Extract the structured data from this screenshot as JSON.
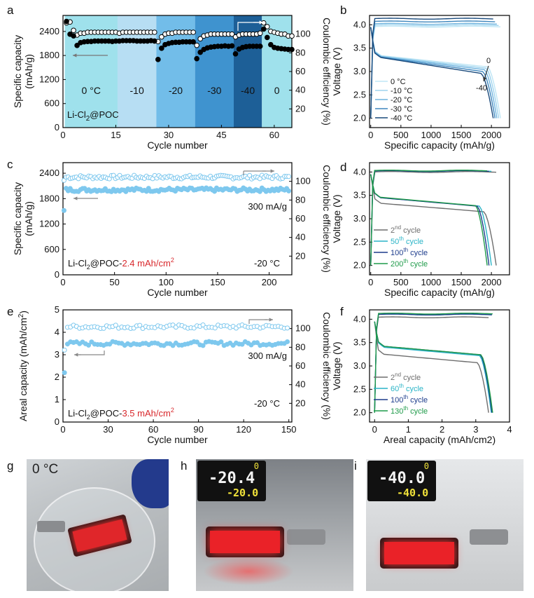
{
  "panel_letters": {
    "a": "a",
    "b": "b",
    "c": "c",
    "d": "d",
    "e": "e",
    "f": "f",
    "g": "g",
    "h": "h",
    "i": "i"
  },
  "photos": {
    "g": {
      "temperature_label": "0 °C"
    },
    "h": {
      "display_top": "0",
      "display_main": "-20.4",
      "display_sub": "-20.0"
    },
    "i": {
      "display_top": "0",
      "display_main": "-40.0",
      "display_sub": "-40.0"
    }
  },
  "colors": {
    "filled_marker": "#000000",
    "open_marker_edge": "#000000",
    "zone_0": "#9fe1ec",
    "zone_m10": "#b7def3",
    "zone_m20": "#72bde9",
    "zone_m30": "#3f93cf",
    "zone_m40": "#1d5f97",
    "zone_0b": "#9fe1ec",
    "light_blue_marker": "#7ec8ee",
    "gray_curve": "#6e6e6e",
    "cyan_curve": "#2ab4c7",
    "navy_curve": "#1d3c8c",
    "green_curve": "#1f9b4a",
    "red_text": "#d8282c"
  },
  "chart_data": [
    {
      "id": "a",
      "type": "scatter",
      "xlabel": "Cycle number",
      "ylabel": "Specific capacity (mAh/g)",
      "ylabel_lines": [
        "Specific capacity",
        "(mAh/g)"
      ],
      "y2label": "Coulombic efficiency (%)",
      "xlim": [
        0,
        65
      ],
      "ylim": [
        0,
        2800
      ],
      "y2lim": [
        0,
        120
      ],
      "xticks": [
        "0",
        "15",
        "30",
        "45",
        "60"
      ],
      "yticks": [
        "0",
        "600",
        "1200",
        "1800",
        "2400"
      ],
      "y2ticks": [
        "20",
        "40",
        "60",
        "80",
        "100"
      ],
      "zones": [
        {
          "label": "0 °C",
          "from": 0.5,
          "to": 15.5,
          "color": "#9fe1ec"
        },
        {
          "label": "-10",
          "from": 15.5,
          "to": 26.5,
          "color": "#b7def3"
        },
        {
          "label": "-20",
          "from": 26.5,
          "to": 37.5,
          "color": "#72bde9"
        },
        {
          "label": "-30",
          "from": 37.5,
          "to": 48.5,
          "color": "#3f93cf"
        },
        {
          "label": "-40",
          "from": 48.5,
          "to": 56.5,
          "color": "#1d5f97"
        },
        {
          "label": "0",
          "from": 56.5,
          "to": 65,
          "color": "#9fe1ec"
        }
      ],
      "annotation": "Li-Cl2@POC",
      "series": [
        {
          "kind": "capacity",
          "values": [
            2650,
            2330,
            2290,
            2050,
            2120,
            2140,
            2150,
            2150,
            2160,
            2160,
            2160,
            2160,
            2160,
            2150,
            2160,
            2160,
            2170,
            2170,
            2170,
            2170,
            2160,
            2160,
            2160,
            2160,
            2170,
            2160,
            1700,
            1980,
            2070,
            2100,
            2120,
            2130,
            2130,
            2140,
            2140,
            2140,
            2140,
            1720,
            1880,
            1950,
            1990,
            2010,
            2020,
            2030,
            2030,
            2040,
            2030,
            2040,
            1840,
            1960,
            2000,
            2020,
            2030,
            2030,
            2030,
            2030,
            2460,
            2250,
            2070,
            2000,
            1980,
            1970,
            1960,
            1950,
            1950
          ]
        },
        {
          "kind": "coulombic_efficiency",
          "values": [
            112,
            113,
            104,
            99,
            101,
            101,
            102,
            102,
            102,
            102,
            102,
            102,
            102,
            102,
            102,
            101,
            102,
            102,
            102,
            102,
            102,
            102,
            102,
            102,
            102,
            102,
            92,
            97,
            100,
            101,
            101,
            102,
            102,
            102,
            102,
            102,
            102,
            88,
            95,
            98,
            99,
            100,
            100,
            100,
            100,
            100,
            100,
            100,
            97,
            99,
            100,
            100,
            100,
            100,
            100,
            101,
            112,
            108,
            103,
            102,
            101,
            100,
            100,
            98,
            98
          ]
        }
      ]
    },
    {
      "id": "b",
      "type": "line",
      "xlabel": "Specific capacity (mAh/g)",
      "ylabel": "Voltage (V)",
      "xlim": [
        -20,
        2300
      ],
      "ylim": [
        1.8,
        4.2
      ],
      "xticks": [
        "0",
        "500",
        "1000",
        "1500",
        "2000"
      ],
      "yticks": [
        "2.0",
        "2.5",
        "3.0",
        "3.5",
        "4.0"
      ],
      "legend": [
        "0 °C",
        "-10 °C",
        "-20 °C",
        "-30 °C",
        "-40 °C"
      ],
      "annotations": [
        "0",
        "-40"
      ],
      "series": [
        {
          "name": "0 °C",
          "color": "#bfe6f5",
          "charge_v": 3.96,
          "plateau_start": 3.34,
          "plateau_end": 3.1,
          "capacity": 2150
        },
        {
          "name": "-10 °C",
          "color": "#9ed3ee",
          "charge_v": 3.99,
          "plateau_start": 3.33,
          "plateau_end": 3.07,
          "capacity": 2120
        },
        {
          "name": "-20 °C",
          "color": "#6fb3de",
          "charge_v": 4.02,
          "plateau_start": 3.32,
          "plateau_end": 3.04,
          "capacity": 2090
        },
        {
          "name": "-30 °C",
          "color": "#3e86bd",
          "charge_v": 4.07,
          "plateau_start": 3.31,
          "plateau_end": 3.0,
          "capacity": 2060
        },
        {
          "name": "-40 °C",
          "color": "#1a4a7c",
          "charge_v": 4.13,
          "plateau_start": 3.3,
          "plateau_end": 2.96,
          "capacity": 2030
        }
      ]
    },
    {
      "id": "c",
      "type": "scatter",
      "xlabel": "Cycle number",
      "ylabel": "Specific capacity (mAh/g)",
      "ylabel_lines": [
        "Specific capacity",
        "(mAh/g)"
      ],
      "y2label": "Coulombic efficiency (%)",
      "xlim": [
        0,
        222
      ],
      "ylim": [
        0,
        2650
      ],
      "y2lim": [
        0,
        120
      ],
      "xticks": [
        "0",
        "50",
        "100",
        "150",
        "200"
      ],
      "yticks": [
        "0",
        "600",
        "1200",
        "1800",
        "2400"
      ],
      "y2ticks": [
        "20",
        "40",
        "60",
        "80",
        "100"
      ],
      "rate": "300 mA/g",
      "temperature": "-20 °C",
      "annotation_prefix": "Li-Cl2@POC-",
      "annotation_highlight": "2.4 mAh/cm2",
      "capacity_first": 1520,
      "capacity_mean": 2010,
      "ce_mean": 104.5
    },
    {
      "id": "d",
      "type": "line",
      "xlabel": "Specific capacity (mAh/g)",
      "ylabel": "Voltage (V)",
      "xlim": [
        -20,
        2300
      ],
      "ylim": [
        1.8,
        4.2
      ],
      "xticks": [
        "0",
        "500",
        "1000",
        "1500",
        "2000"
      ],
      "yticks": [
        "2.0",
        "2.5",
        "3.0",
        "3.5",
        "4.0"
      ],
      "legend": [
        {
          "base": "2",
          "sup": "nd",
          "rest": " cycle",
          "color": "#6e6e6e"
        },
        {
          "base": "50",
          "sup": "th",
          "rest": " cycle",
          "color": "#2ab4c7"
        },
        {
          "base": "100",
          "sup": "th",
          "rest": " cycle",
          "color": "#1d3c8c"
        },
        {
          "base": "200",
          "sup": "th",
          "rest": " cycle",
          "color": "#1f9b4a"
        }
      ],
      "series": [
        {
          "name": "2nd cycle",
          "color": "#6e6e6e",
          "charge_v": 4.0,
          "capacity": 2080,
          "knee": 3.33
        },
        {
          "name": "50th cycle",
          "color": "#2ab4c7",
          "charge_v": 4.02,
          "capacity": 2000,
          "knee": 3.45
        },
        {
          "name": "100th cycle",
          "color": "#1d3c8c",
          "charge_v": 4.02,
          "capacity": 1960,
          "knee": 3.45
        },
        {
          "name": "200th cycle",
          "color": "#1f9b4a",
          "charge_v": 4.03,
          "capacity": 1930,
          "knee": 3.46
        }
      ]
    },
    {
      "id": "e",
      "type": "scatter",
      "xlabel": "Cycle number",
      "ylabel": "Areal capacity (mAh/cm2)",
      "y2label": "Coulombic efficiency (%)",
      "xlim": [
        0,
        152
      ],
      "ylim": [
        0,
        5
      ],
      "y2lim": [
        0,
        120
      ],
      "xticks": [
        "0",
        "30",
        "60",
        "90",
        "120",
        "150"
      ],
      "yticks": [
        "0",
        "1",
        "2",
        "3",
        "4",
        "5"
      ],
      "y2ticks": [
        "20",
        "40",
        "60",
        "80",
        "100"
      ],
      "rate": "300 mA/g",
      "temperature": "-20 °C",
      "annotation_prefix": "Li-Cl2@POC-",
      "annotation_highlight": "3.5 mAh/cm2",
      "capacity_first": 2.2,
      "capacity_mean": 3.5,
      "ce_mean": 102
    },
    {
      "id": "f",
      "type": "line",
      "xlabel": "Areal capacity (mAh/cm2)",
      "ylabel": "Voltage (V)",
      "xlim": [
        -0.15,
        4
      ],
      "ylim": [
        1.8,
        4.2
      ],
      "xticks": [
        "0",
        "1",
        "2",
        "3",
        "4"
      ],
      "yticks": [
        "2.0",
        "2.5",
        "3.0",
        "3.5",
        "4.0"
      ],
      "legend": [
        {
          "base": "2",
          "sup": "nd",
          "rest": " cycle",
          "color": "#6e6e6e"
        },
        {
          "base": "60",
          "sup": "th",
          "rest": " cycle",
          "color": "#2ab4c7"
        },
        {
          "base": "100",
          "sup": "th",
          "rest": " cycle",
          "color": "#1d3c8c"
        },
        {
          "base": "130",
          "sup": "th",
          "rest": " cycle",
          "color": "#1f9b4a"
        }
      ],
      "series": [
        {
          "name": "2nd cycle",
          "color": "#6e6e6e",
          "charge_v": 4.04,
          "capacity": 3.38,
          "knee": 3.25
        },
        {
          "name": "60th cycle",
          "color": "#2ab4c7",
          "charge_v": 4.1,
          "capacity": 3.46,
          "knee": 3.4
        },
        {
          "name": "100th cycle",
          "color": "#1d3c8c",
          "charge_v": 4.1,
          "capacity": 3.48,
          "knee": 3.42
        },
        {
          "name": "130th cycle",
          "color": "#1f9b4a",
          "charge_v": 4.12,
          "capacity": 3.5,
          "knee": 3.42
        }
      ]
    }
  ]
}
